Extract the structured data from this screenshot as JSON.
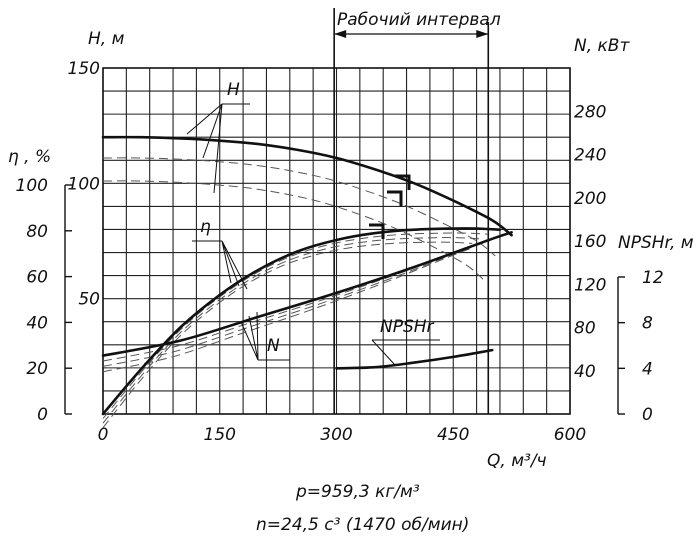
{
  "chart_data": {
    "type": "line",
    "title": "",
    "xlabel": "Q, м³/ч",
    "x_ticks": [
      "0",
      "150",
      "300",
      "450",
      "600"
    ],
    "xlim": [
      0,
      600
    ],
    "axes": {
      "H": {
        "label": "H, м",
        "ticks": [
          "150",
          "100",
          "50"
        ],
        "ylim": [
          0,
          150
        ]
      },
      "eta": {
        "label": "η , %",
        "ticks": [
          "100",
          "80",
          "60",
          "40",
          "20",
          "0"
        ],
        "ylim": [
          0,
          100
        ]
      },
      "N": {
        "label": "N, кВт",
        "ticks": [
          "280",
          "240",
          "200",
          "160",
          "120",
          "80",
          "40"
        ],
        "ylim": [
          0,
          320
        ]
      },
      "NPSH": {
        "label": "NPSHr, м",
        "ticks": [
          "12",
          "8",
          "4",
          "0"
        ],
        "ylim": [
          0,
          12
        ]
      }
    },
    "working_range": {
      "label": "Рабочий интервал",
      "q_min": 297,
      "q_max": 495
    },
    "series": [
      {
        "name": "H",
        "axis": "H",
        "x": [
          0,
          50,
          100,
          150,
          200,
          250,
          300,
          350,
          400,
          450,
          500,
          525
        ],
        "y": [
          120,
          120,
          119.5,
          118.5,
          117,
          114.5,
          111,
          106,
          100,
          92.5,
          84,
          77.5
        ]
      },
      {
        "name": "η",
        "axis": "eta",
        "x": [
          0,
          50,
          100,
          150,
          200,
          250,
          300,
          350,
          400,
          450,
          480,
          510
        ],
        "y": [
          0,
          20,
          38,
          52,
          63,
          71,
          76,
          79,
          80.5,
          81,
          81,
          80.5
        ]
      },
      {
        "name": "N",
        "axis": "N",
        "x": [
          0,
          100,
          200,
          300,
          400,
          500,
          525
        ],
        "y": [
          54,
          68,
          90,
          112,
          136,
          162,
          168
        ]
      },
      {
        "name": "NPSHr",
        "axis": "NPSH",
        "x": [
          300,
          350,
          400,
          450,
          500
        ],
        "y": [
          4.0,
          4.1,
          4.5,
          5.0,
          5.6
        ]
      }
    ],
    "notes": [
      "p=959,3 кг/м³",
      "n=24,5 с³ (1470 об/мин)"
    ]
  }
}
